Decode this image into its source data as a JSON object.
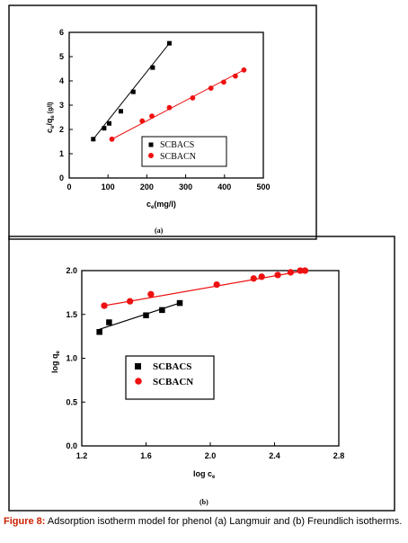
{
  "chart_data": [
    {
      "type": "scatter",
      "panel_label": "(a)",
      "xlabel_main": "c",
      "xlabel_sub": "e",
      "xlabel_tail": "(mg/l)",
      "ylabel_parts": [
        "c",
        "e",
        "/q",
        "e",
        " (g/l)"
      ],
      "xlim": [
        0,
        500
      ],
      "ylim": [
        0,
        6
      ],
      "xticks": [
        0,
        100,
        200,
        300,
        400,
        500
      ],
      "yticks": [
        0,
        1,
        2,
        3,
        4,
        5,
        6
      ],
      "legend_position": "center-right",
      "series": [
        {
          "name": "SCBACS",
          "marker": "square",
          "color": "#000000",
          "x": [
            62,
            90,
            103,
            133,
            165,
            215,
            258
          ],
          "y": [
            1.6,
            2.05,
            2.25,
            2.75,
            3.55,
            4.55,
            5.55
          ],
          "fit": [
            [
              62,
              1.6
            ],
            [
              258,
              5.55
            ]
          ]
        },
        {
          "name": "SCBACN",
          "marker": "circle",
          "color": "#ee1111",
          "x": [
            110,
            188,
            213,
            258,
            318,
            365,
            398,
            428,
            450
          ],
          "y": [
            1.6,
            2.35,
            2.55,
            2.9,
            3.3,
            3.7,
            3.95,
            4.2,
            4.45
          ],
          "fit": [
            [
              110,
              1.6
            ],
            [
              450,
              4.45
            ]
          ]
        }
      ]
    },
    {
      "type": "scatter",
      "panel_label": "(b)",
      "xlabel_main": "log c",
      "xlabel_sub": "e",
      "ylabel_main": "log q",
      "ylabel_sub": "e",
      "xlim": [
        1.2,
        2.8
      ],
      "ylim": [
        0.0,
        2.0
      ],
      "xticks": [
        "1.2",
        "1.6",
        "2.0",
        "2.4",
        "2.8"
      ],
      "yticks": [
        "0.0",
        "0.5",
        "1.0",
        "1.5",
        "2.0"
      ],
      "legend_position": "center-left",
      "series": [
        {
          "name": "SCBACS",
          "marker": "square",
          "color": "#000000",
          "x": [
            1.31,
            1.37,
            1.6,
            1.7,
            1.81
          ],
          "y": [
            1.3,
            1.41,
            1.49,
            1.55,
            1.63
          ],
          "fit": [
            [
              1.31,
              1.33
            ],
            [
              1.81,
              1.63
            ]
          ]
        },
        {
          "name": "SCBACN",
          "marker": "circle",
          "color": "#ee1111",
          "x": [
            1.34,
            1.5,
            1.63,
            2.04,
            2.27,
            2.32,
            2.42,
            2.5,
            2.56,
            2.59
          ],
          "y": [
            1.6,
            1.65,
            1.73,
            1.84,
            1.91,
            1.93,
            1.95,
            1.98,
            2.0,
            2.0
          ],
          "fit": [
            [
              1.34,
              1.6
            ],
            [
              2.59,
              2.0
            ]
          ]
        }
      ]
    }
  ],
  "caption": {
    "label": "Figure 8:",
    "text": " Adsorption isotherm model for phenol (a) Langmuir and (b) Freundlich isotherms."
  }
}
